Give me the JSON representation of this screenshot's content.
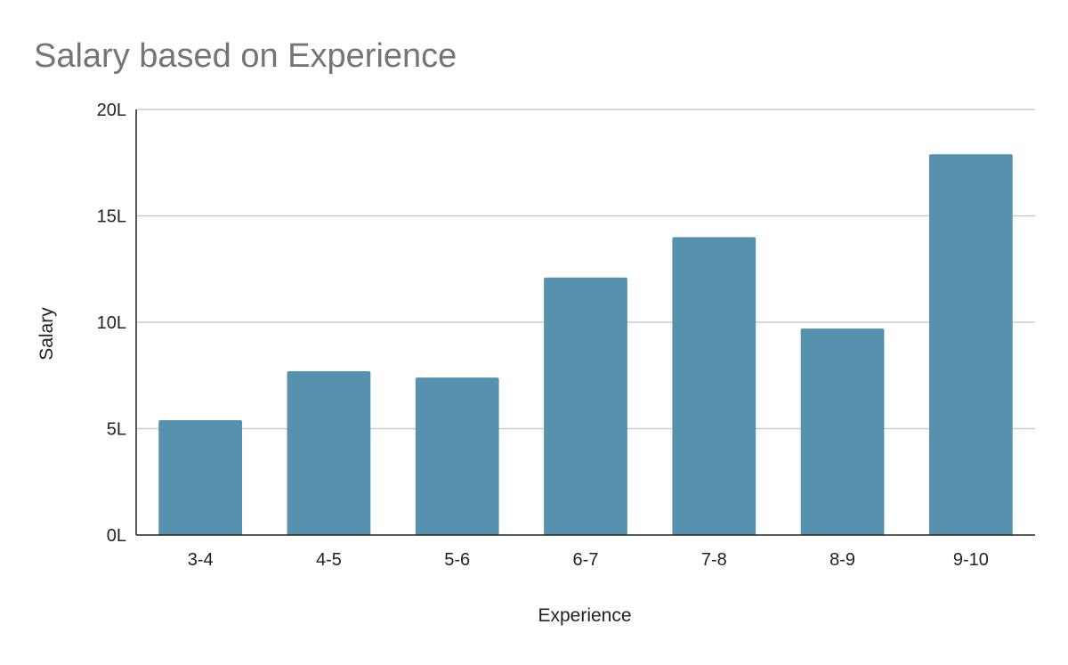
{
  "chart_data": {
    "type": "bar",
    "title": "Salary based on Experience",
    "xlabel": "Experience",
    "ylabel": "Salary",
    "categories": [
      "3-4",
      "4-5",
      "5-6",
      "6-7",
      "7-8",
      "8-9",
      "9-10"
    ],
    "values": [
      5.4,
      7.7,
      7.4,
      12.1,
      14.0,
      9.7,
      17.9
    ],
    "value_unit": "L",
    "yticks": [
      "0L",
      "5L",
      "10L",
      "15L",
      "20L"
    ],
    "ylim": [
      0,
      20
    ],
    "grid": true,
    "legend": "none",
    "colors": {
      "bar": "#5891AE",
      "grid": "#CCCCCC",
      "axis": "#222222",
      "title": "#757575",
      "text": "#222222"
    }
  }
}
